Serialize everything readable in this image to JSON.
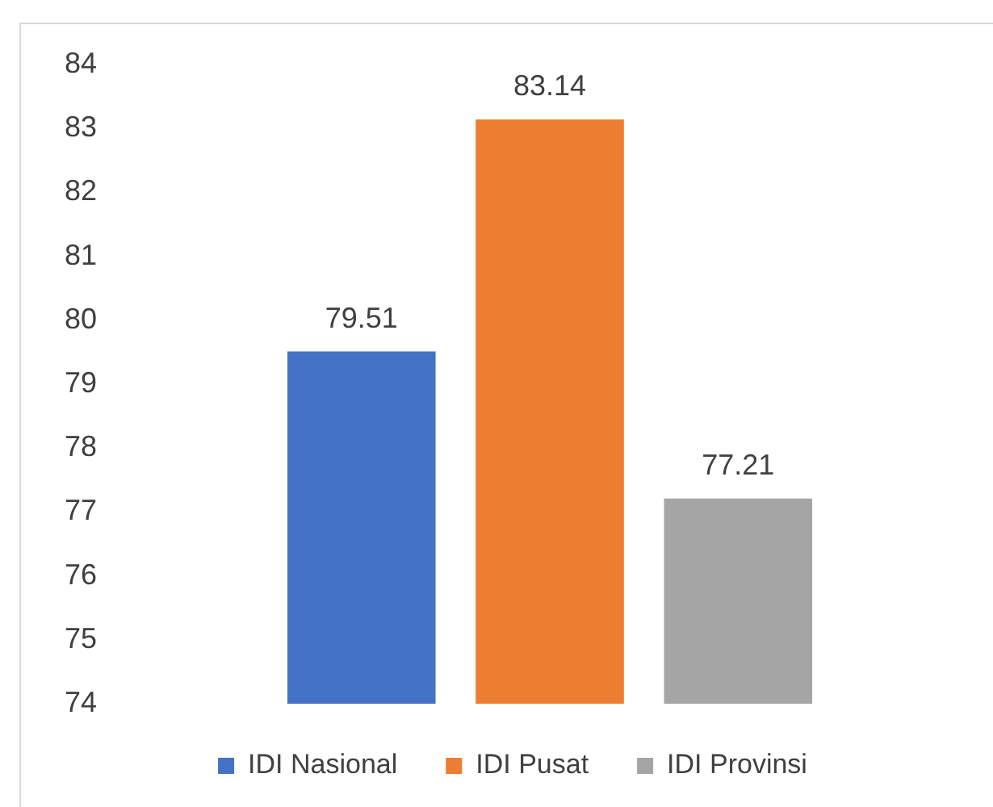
{
  "chart_data": {
    "type": "bar",
    "categories": [
      null
    ],
    "series": [
      {
        "name": "IDI Nasional",
        "color": "#4472c4",
        "values": [
          79.51
        ]
      },
      {
        "name": "IDI Pusat",
        "color": "#ed7d31",
        "values": [
          83.14
        ]
      },
      {
        "name": "IDI Provinsi",
        "color": "#a5a5a5",
        "values": [
          77.21
        ]
      }
    ],
    "ylim": [
      74,
      84
    ],
    "yticks": [
      74,
      75,
      76,
      77,
      78,
      79,
      80,
      81,
      82,
      83,
      84
    ],
    "grid": false,
    "legend": "bottom",
    "data_labels": true,
    "tick_labels": "y"
  }
}
